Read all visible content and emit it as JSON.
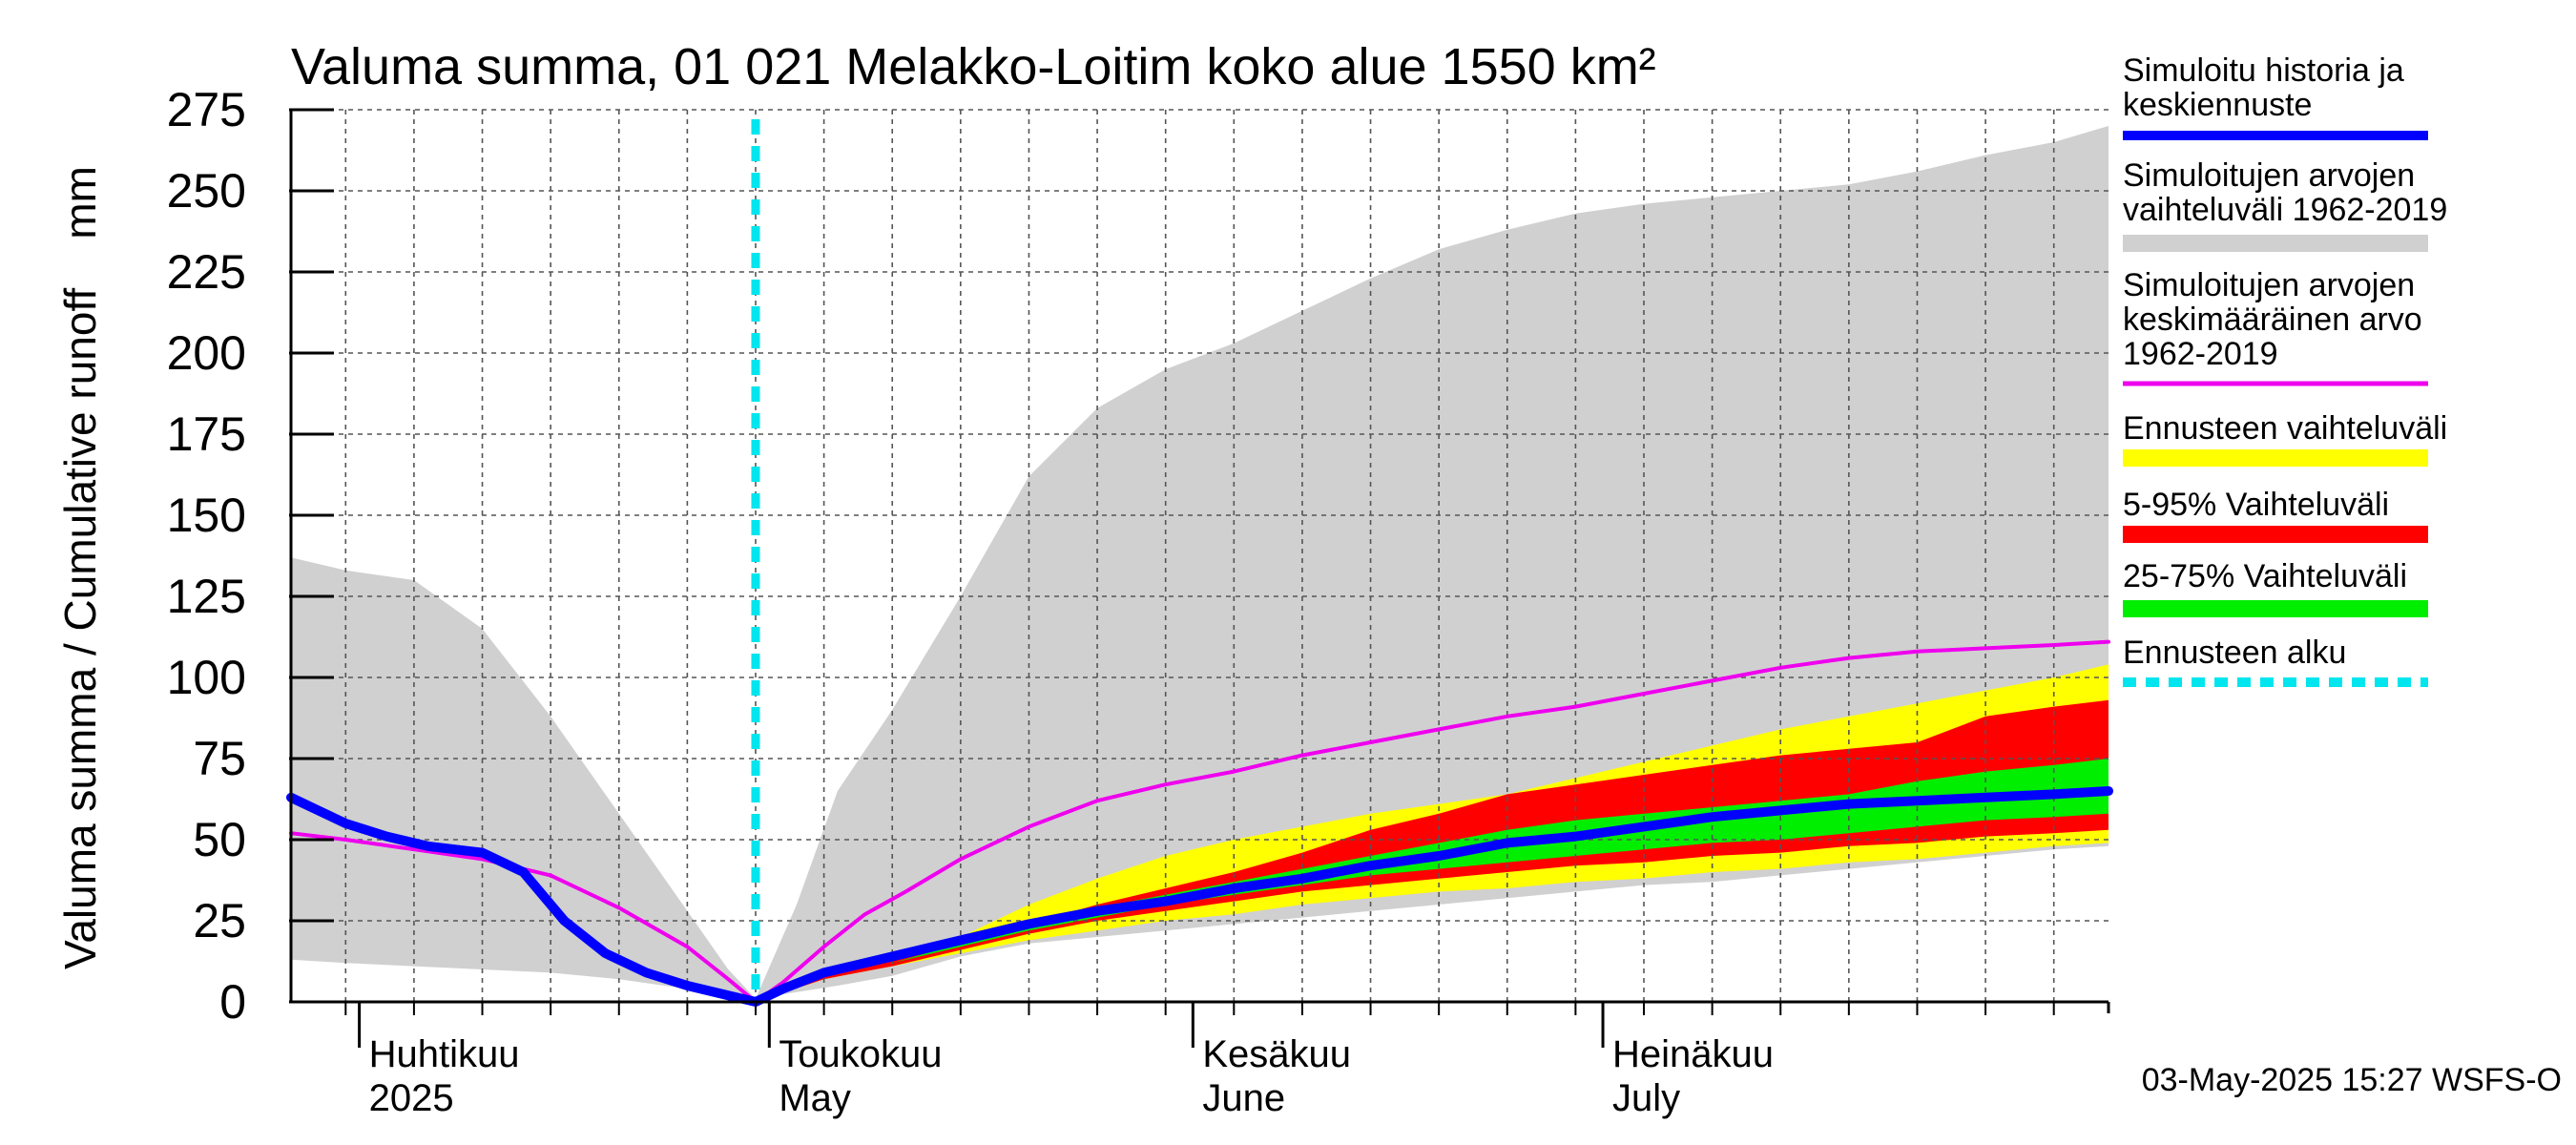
{
  "chart_data": {
    "type": "area",
    "title": "Valuma summa, 01 021 Melakko-Loitim koko alue 1550 km²",
    "ylabel": "Valuma summa / Cumulative runoff    mm",
    "ylim": [
      0,
      275
    ],
    "yticks": [
      0,
      25,
      50,
      75,
      100,
      125,
      150,
      175,
      200,
      225,
      250,
      275
    ],
    "x_unit": "day of year 2025",
    "xlim": [
      86,
      219
    ],
    "month_labels": [
      {
        "fi": "Huhtikuu",
        "en": "2025",
        "day": 91
      },
      {
        "fi": "Toukokuu",
        "en": "May",
        "day": 121
      },
      {
        "fi": "Kesäkuu",
        "en": "June",
        "day": 152
      },
      {
        "fi": "Heinäkuu",
        "en": "July",
        "day": 182
      }
    ],
    "forecast_start_day": 120,
    "timestamp": "03-May-2025 15:27 WSFS-O",
    "legend": [
      {
        "label": "Simuloitu historia ja keskiennuste",
        "color": "#0000ff",
        "kind": "line"
      },
      {
        "label": "Simuloitujen arvojen vaihteluväli 1962-2019",
        "color": "#d0d0d0",
        "kind": "band"
      },
      {
        "label": "Simuloitujen arvojen keskimääräinen arvo    1962-2019",
        "color": "#ee00ee",
        "kind": "line"
      },
      {
        "label": "Ennusteen vaihteluväli",
        "color": "#ffff00",
        "kind": "band"
      },
      {
        "label": "5-95% Vaihteluväli",
        "color": "#ff0000",
        "kind": "band"
      },
      {
        "label": "25-75% Vaihteluväli",
        "color": "#00ee00",
        "kind": "band"
      },
      {
        "label": "Ennusteen alku",
        "color": "#00e5ee",
        "kind": "dash"
      }
    ],
    "series": [
      {
        "name": "hist_range",
        "color": "#d0d0d0",
        "type": "band",
        "x": [
          86,
          90,
          95,
          100,
          105,
          110,
          115,
          118,
          120,
          123,
          126,
          130,
          135,
          140,
          145,
          150,
          155,
          160,
          165,
          170,
          175,
          180,
          185,
          190,
          195,
          200,
          205,
          210,
          215,
          219
        ],
        "lower": [
          13,
          12,
          11,
          10,
          9,
          7,
          4,
          2,
          1,
          3,
          5,
          8,
          14,
          18,
          20,
          22,
          24,
          26,
          28,
          30,
          32,
          34,
          36,
          37,
          39,
          41,
          43,
          45,
          47,
          48
        ],
        "upper": [
          137,
          133,
          130,
          115,
          88,
          58,
          28,
          10,
          1,
          30,
          65,
          90,
          125,
          162,
          183,
          195,
          203,
          213,
          223,
          232,
          238,
          243,
          246,
          248,
          250,
          252,
          256,
          261,
          265,
          270
        ]
      },
      {
        "name": "forecast_range",
        "color": "#ffff00",
        "type": "band",
        "x": [
          120,
          125,
          130,
          135,
          140,
          145,
          150,
          155,
          160,
          165,
          170,
          175,
          180,
          185,
          190,
          195,
          200,
          205,
          210,
          215,
          219
        ],
        "lower": [
          0,
          7,
          11,
          15,
          19,
          22,
          25,
          27,
          30,
          32,
          34,
          35,
          37,
          38,
          40,
          41,
          43,
          44,
          46,
          48,
          49
        ],
        "upper": [
          0,
          8,
          13,
          20,
          30,
          38,
          45,
          50,
          54,
          58,
          61,
          64,
          69,
          74,
          79,
          84,
          88,
          92,
          96,
          100,
          104
        ]
      },
      {
        "name": "p05_95",
        "color": "#ff0000",
        "type": "band",
        "x": [
          120,
          125,
          130,
          135,
          140,
          145,
          150,
          155,
          160,
          165,
          170,
          175,
          180,
          185,
          190,
          195,
          200,
          205,
          210,
          215,
          219
        ],
        "lower": [
          0,
          7,
          11,
          16,
          21,
          25,
          28,
          31,
          34,
          36,
          38,
          40,
          42,
          43,
          45,
          46,
          48,
          49,
          51,
          52,
          53
        ],
        "upper": [
          0,
          8,
          13,
          18,
          24,
          30,
          35,
          40,
          46,
          53,
          58,
          64,
          67,
          70,
          73,
          76,
          78,
          80,
          88,
          91,
          93
        ]
      },
      {
        "name": "p25_75",
        "color": "#00ee00",
        "type": "band",
        "x": [
          120,
          125,
          130,
          135,
          140,
          145,
          150,
          155,
          160,
          165,
          170,
          175,
          180,
          185,
          190,
          195,
          200,
          205,
          210,
          215,
          219
        ],
        "lower": [
          0,
          7,
          12,
          17,
          22,
          26,
          30,
          33,
          36,
          39,
          41,
          43,
          45,
          47,
          49,
          50,
          52,
          54,
          56,
          57,
          58
        ],
        "upper": [
          0,
          7,
          12,
          18,
          24,
          29,
          33,
          37,
          41,
          45,
          49,
          53,
          56,
          58,
          60,
          62,
          64,
          68,
          71,
          73,
          75
        ]
      },
      {
        "name": "hist_mean",
        "color": "#ee00ee",
        "type": "line",
        "x": [
          86,
          90,
          95,
          100,
          105,
          110,
          115,
          118,
          120,
          122,
          125,
          128,
          131,
          135,
          140,
          145,
          150,
          155,
          160,
          165,
          170,
          175,
          180,
          185,
          190,
          195,
          200,
          205,
          210,
          215,
          219
        ],
        "y": [
          52,
          50,
          47,
          44,
          39,
          29,
          17,
          7,
          0,
          6,
          17,
          27,
          34,
          44,
          54,
          62,
          67,
          71,
          76,
          80,
          84,
          88,
          91,
          95,
          99,
          103,
          106,
          108,
          109,
          110,
          111
        ]
      },
      {
        "name": "simulated_forecast",
        "color": "#0000ff",
        "type": "line",
        "x": [
          86,
          88,
          90,
          93,
          96,
          100,
          103,
          106,
          109,
          112,
          115,
          118,
          120,
          122,
          125,
          128,
          131,
          135,
          140,
          145,
          150,
          155,
          160,
          165,
          170,
          175,
          180,
          185,
          190,
          195,
          200,
          205,
          210,
          215,
          219
        ],
        "y": [
          63,
          59,
          55,
          51,
          48,
          46,
          40,
          25,
          15,
          9,
          5,
          2,
          0,
          4,
          9,
          12,
          15,
          19,
          24,
          28,
          31,
          35,
          38,
          42,
          45,
          49,
          51,
          54,
          57,
          59,
          61,
          62,
          63,
          64,
          65
        ]
      }
    ]
  }
}
